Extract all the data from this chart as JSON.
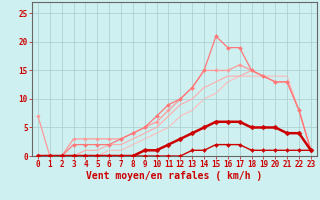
{
  "bg_color": "#cff0f0",
  "grid_color": "#aacccc",
  "xlabel": "Vent moyen/en rafales ( km/h )",
  "xlabel_color": "#cc0000",
  "xlabel_fontsize": 7,
  "tick_color": "#cc0000",
  "tick_fontsize": 5.5,
  "xlim": [
    -0.5,
    23.5
  ],
  "ylim": [
    0,
    27
  ],
  "yticks": [
    0,
    5,
    10,
    15,
    20,
    25
  ],
  "xticks": [
    0,
    1,
    2,
    3,
    4,
    5,
    6,
    7,
    8,
    9,
    10,
    11,
    12,
    13,
    14,
    15,
    16,
    17,
    18,
    19,
    20,
    21,
    22,
    23
  ],
  "series": [
    {
      "x": [
        0,
        1,
        2,
        3,
        4,
        5,
        6,
        7,
        8,
        9,
        10,
        11,
        12,
        13,
        14,
        15,
        16,
        17,
        18,
        19,
        20,
        21,
        22,
        23
      ],
      "y": [
        0,
        0,
        0,
        0,
        0,
        0,
        1,
        1,
        2,
        3,
        4,
        5,
        7,
        8,
        10,
        11,
        13,
        14,
        14,
        14,
        14,
        14,
        8,
        1
      ],
      "color": "#ffbbbb",
      "lw": 0.8,
      "marker": null,
      "ms": 0,
      "zorder": 1
    },
    {
      "x": [
        0,
        1,
        2,
        3,
        4,
        5,
        6,
        7,
        8,
        9,
        10,
        11,
        12,
        13,
        14,
        15,
        16,
        17,
        18,
        19,
        20,
        21,
        22,
        23
      ],
      "y": [
        0,
        0,
        0,
        0,
        1,
        1,
        2,
        2,
        3,
        4,
        5,
        7,
        9,
        10,
        12,
        13,
        14,
        14,
        15,
        14,
        13,
        13,
        8,
        1
      ],
      "color": "#ffaaaa",
      "lw": 0.8,
      "marker": null,
      "ms": 0,
      "zorder": 2
    },
    {
      "x": [
        0,
        1,
        2,
        3,
        4,
        5,
        6,
        7,
        8,
        9,
        10,
        11,
        12,
        13,
        14,
        15,
        16,
        17,
        18,
        19,
        20,
        21,
        22,
        23
      ],
      "y": [
        7,
        0,
        0,
        3,
        3,
        3,
        3,
        3,
        4,
        5,
        6,
        8,
        10,
        12,
        15,
        15,
        15,
        16,
        15,
        14,
        13,
        13,
        8,
        1
      ],
      "color": "#ff9999",
      "lw": 0.9,
      "marker": "D",
      "ms": 1.8,
      "zorder": 3
    },
    {
      "x": [
        0,
        1,
        2,
        3,
        4,
        5,
        6,
        7,
        8,
        9,
        10,
        11,
        12,
        13,
        14,
        15,
        16,
        17,
        18,
        19,
        20,
        21,
        22,
        23
      ],
      "y": [
        0,
        0,
        0,
        2,
        2,
        2,
        2,
        3,
        4,
        5,
        7,
        9,
        10,
        12,
        15,
        21,
        19,
        19,
        15,
        14,
        13,
        13,
        8,
        1
      ],
      "color": "#ff7777",
      "lw": 0.9,
      "marker": "D",
      "ms": 2.0,
      "zorder": 4
    },
    {
      "x": [
        0,
        1,
        2,
        3,
        4,
        5,
        6,
        7,
        8,
        9,
        10,
        11,
        12,
        13,
        14,
        15,
        16,
        17,
        18,
        19,
        20,
        21,
        22,
        23
      ],
      "y": [
        0,
        0,
        0,
        0,
        0,
        0,
        0,
        0,
        0,
        1,
        1,
        2,
        3,
        4,
        5,
        6,
        6,
        6,
        5,
        5,
        5,
        4,
        4,
        1
      ],
      "color": "#cc0000",
      "lw": 1.8,
      "marker": "D",
      "ms": 2.5,
      "zorder": 6
    },
    {
      "x": [
        0,
        1,
        2,
        3,
        4,
        5,
        6,
        7,
        8,
        9,
        10,
        11,
        12,
        13,
        14,
        15,
        16,
        17,
        18,
        19,
        20,
        21,
        22,
        23
      ],
      "y": [
        0,
        0,
        0,
        0,
        0,
        0,
        0,
        0,
        0,
        0,
        0,
        0,
        0,
        1,
        1,
        2,
        2,
        2,
        1,
        1,
        1,
        1,
        1,
        1
      ],
      "color": "#cc0000",
      "lw": 1.0,
      "marker": "D",
      "ms": 2.0,
      "zorder": 5
    }
  ]
}
